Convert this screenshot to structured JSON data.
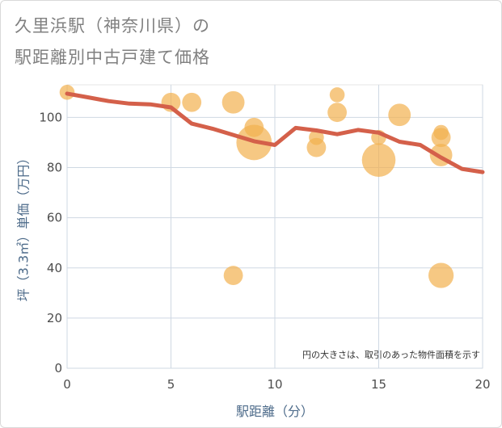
{
  "title_line1": "久里浜駅（神奈川県）の",
  "title_line2": "駅距離別中古戸建て価格",
  "chart_data": {
    "type": "scatter",
    "title": "久里浜駅（神奈川県）の 駅距離別中古戸建て価格",
    "xlabel": "駅距離（分）",
    "ylabel": "坪（3.3㎡）単価（万円）",
    "xlim": [
      0,
      20
    ],
    "ylim": [
      0,
      113
    ],
    "x_ticks": [
      0,
      5,
      10,
      15,
      20
    ],
    "y_ticks": [
      0,
      20,
      40,
      60,
      80,
      100
    ],
    "grid": true,
    "note": "円の大きさは、取引のあった物件面積を示す",
    "colors": {
      "bubble": "#f2b04f",
      "line": "#d4604a"
    },
    "points": [
      {
        "x": 0,
        "y": 110,
        "size": 1
      },
      {
        "x": 5,
        "y": 106,
        "size": 2
      },
      {
        "x": 6,
        "y": 106,
        "size": 2
      },
      {
        "x": 8,
        "y": 106,
        "size": 3
      },
      {
        "x": 8,
        "y": 37,
        "size": 2
      },
      {
        "x": 9,
        "y": 96,
        "size": 2
      },
      {
        "x": 9,
        "y": 90,
        "size": 9
      },
      {
        "x": 12,
        "y": 92,
        "size": 1
      },
      {
        "x": 12,
        "y": 88,
        "size": 2
      },
      {
        "x": 13,
        "y": 109,
        "size": 1
      },
      {
        "x": 13,
        "y": 102,
        "size": 2
      },
      {
        "x": 15,
        "y": 92,
        "size": 1
      },
      {
        "x": 15,
        "y": 83,
        "size": 8
      },
      {
        "x": 16,
        "y": 101,
        "size": 3
      },
      {
        "x": 18,
        "y": 94,
        "size": 1
      },
      {
        "x": 18,
        "y": 92,
        "size": 2
      },
      {
        "x": 18,
        "y": 85,
        "size": 3
      },
      {
        "x": 18,
        "y": 37,
        "size": 4
      }
    ],
    "trend": {
      "x": [
        0,
        1,
        2,
        3,
        4,
        5,
        6,
        7,
        8,
        9,
        10,
        11,
        12,
        13,
        14,
        15,
        16,
        17,
        18,
        19,
        20
      ],
      "y": [
        109.5,
        108,
        106.5,
        105.5,
        105.2,
        104,
        97.5,
        95.5,
        93,
        90.5,
        89,
        95.8,
        94.8,
        93.3,
        95,
        93.9,
        90.3,
        89,
        84,
        79.5,
        78.2
      ]
    }
  }
}
